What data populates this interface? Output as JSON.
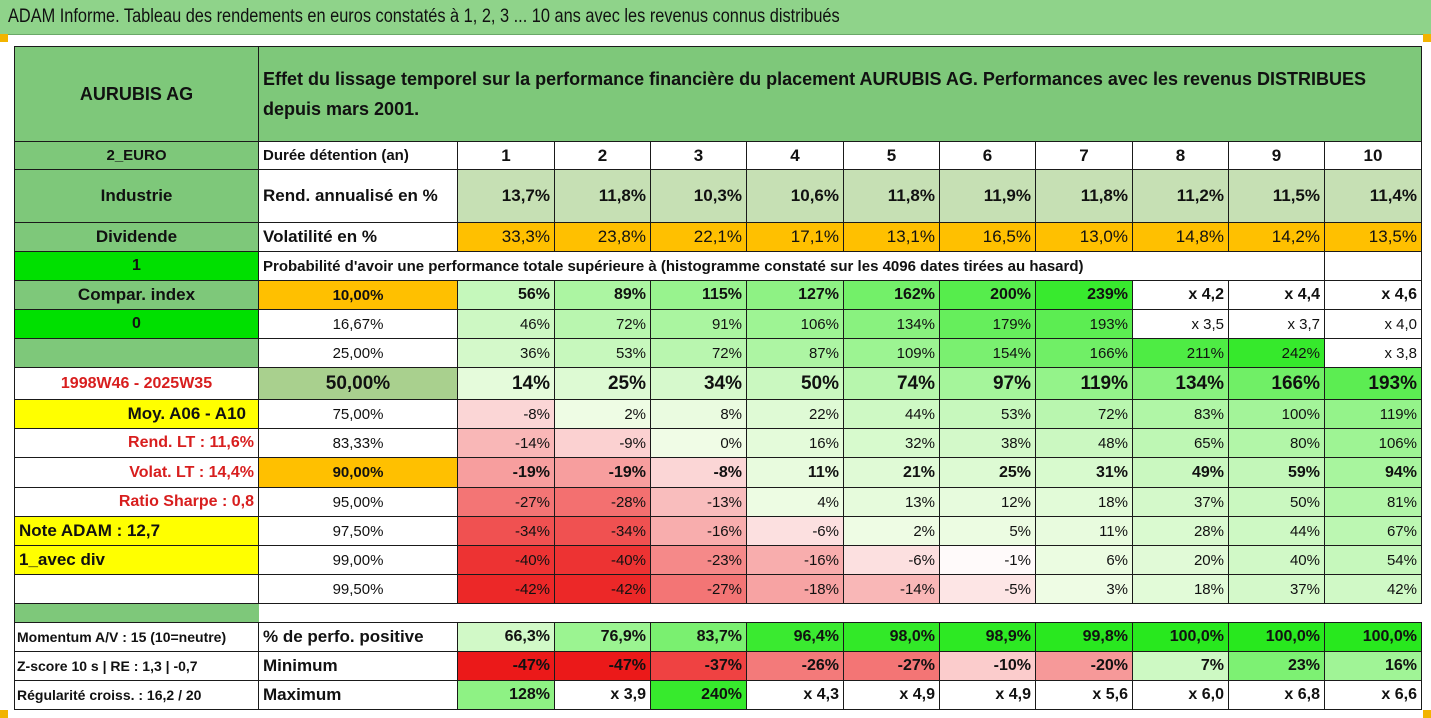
{
  "title": "ADAM Informe. Tableau des rendements en euros constatés à 1, 2, 3 ... 10 ans avec les revenus connus distribués",
  "company": "AURUBIS AG",
  "headline": "Effet du lissage temporel sur la performance financière du placement AURUBIS AG. Performances avec les revenus DISTRIBUES depuis mars 2001.",
  "side": {
    "currency": "2_EURO",
    "sector": "Industrie",
    "dividend": "Dividende",
    "flag1": "1",
    "compar": "Compar. index",
    "flag0": "0",
    "period": "1998W46 - 2025W35",
    "moy": "Moy. A06 - A10",
    "rend_lt": "Rend. LT :   11,6%",
    "volat_lt": "Volat. LT :   14,4%",
    "sharpe": "Ratio Sharpe :    0,8",
    "note": "Note ADAM : 12,7",
    "avec_div": "1_avec div",
    "momentum": "Momentum A/V : 15 (10=neutre)",
    "zscore": "Z-score 10 s  |  RE : 1,3  |  -0,7",
    "regularite": "Régularité croiss. : 16,2 / 20"
  },
  "labels": {
    "duree": "Durée détention (an)",
    "rend": "Rend. annualisé en %",
    "volat": "Volatilité en %",
    "proba": "Probabilité d'avoir une performance totale supérieure à (histogramme constaté sur les 4096 dates tirées au hasard)",
    "perf_pos": "% de perfo. positive",
    "minimum": "Minimum",
    "maximum": "Maximum"
  },
  "years": [
    "1",
    "2",
    "3",
    "4",
    "5",
    "6",
    "7",
    "8",
    "9",
    "10"
  ],
  "rend": [
    "13,7%",
    "11,8%",
    "10,3%",
    "10,6%",
    "11,8%",
    "11,9%",
    "11,8%",
    "11,2%",
    "11,5%",
    "11,4%"
  ],
  "volat": [
    "33,3%",
    "23,8%",
    "22,1%",
    "17,1%",
    "13,1%",
    "16,5%",
    "13,0%",
    "14,8%",
    "14,2%",
    "13,5%"
  ],
  "quantiles": [
    {
      "p": "10,00%",
      "v": [
        "56%",
        "89%",
        "115%",
        "127%",
        "162%",
        "200%",
        "239%",
        "x 4,2",
        "x 4,4",
        "x 4,6"
      ]
    },
    {
      "p": "16,67%",
      "v": [
        "46%",
        "72%",
        "91%",
        "106%",
        "134%",
        "179%",
        "193%",
        "x 3,5",
        "x 3,7",
        "x 4,0"
      ]
    },
    {
      "p": "25,00%",
      "v": [
        "36%",
        "53%",
        "72%",
        "87%",
        "109%",
        "154%",
        "166%",
        "211%",
        "242%",
        "x 3,8"
      ]
    },
    {
      "p": "50,00%",
      "v": [
        "14%",
        "25%",
        "34%",
        "50%",
        "74%",
        "97%",
        "119%",
        "134%",
        "166%",
        "193%"
      ]
    },
    {
      "p": "75,00%",
      "v": [
        "-8%",
        "2%",
        "8%",
        "22%",
        "44%",
        "53%",
        "72%",
        "83%",
        "100%",
        "119%"
      ]
    },
    {
      "p": "83,33%",
      "v": [
        "-14%",
        "-9%",
        "0%",
        "16%",
        "32%",
        "38%",
        "48%",
        "65%",
        "80%",
        "106%"
      ]
    },
    {
      "p": "90,00%",
      "v": [
        "-19%",
        "-19%",
        "-8%",
        "11%",
        "21%",
        "25%",
        "31%",
        "49%",
        "59%",
        "94%"
      ]
    },
    {
      "p": "95,00%",
      "v": [
        "-27%",
        "-28%",
        "-13%",
        "4%",
        "13%",
        "12%",
        "18%",
        "37%",
        "50%",
        "81%"
      ]
    },
    {
      "p": "97,50%",
      "v": [
        "-34%",
        "-34%",
        "-16%",
        "-6%",
        "2%",
        "5%",
        "11%",
        "28%",
        "44%",
        "67%"
      ]
    },
    {
      "p": "99,00%",
      "v": [
        "-40%",
        "-40%",
        "-23%",
        "-16%",
        "-6%",
        "-1%",
        "6%",
        "20%",
        "40%",
        "54%"
      ]
    },
    {
      "p": "99,50%",
      "v": [
        "-42%",
        "-42%",
        "-27%",
        "-18%",
        "-14%",
        "-5%",
        "3%",
        "18%",
        "37%",
        "42%"
      ]
    }
  ],
  "perf_pos": [
    "66,3%",
    "76,9%",
    "83,7%",
    "96,4%",
    "98,0%",
    "98,9%",
    "99,8%",
    "100,0%",
    "100,0%",
    "100,0%"
  ],
  "minimum": [
    "-47%",
    "-47%",
    "-37%",
    "-26%",
    "-27%",
    "-10%",
    "-20%",
    "7%",
    "23%",
    "16%"
  ],
  "maximum": [
    "128%",
    "x 3,9",
    "240%",
    "x 4,3",
    "x 4,9",
    "x 4,9",
    "x 5,6",
    "x 6,0",
    "x 6,8",
    "x 6,6"
  ],
  "colors": {
    "title_green": "#8fd38a",
    "header_green": "#7ec87a",
    "orange": "#ffc000",
    "bright_green": "#00e000",
    "yellow": "#ffff00",
    "red_text": "#d81e1e"
  }
}
